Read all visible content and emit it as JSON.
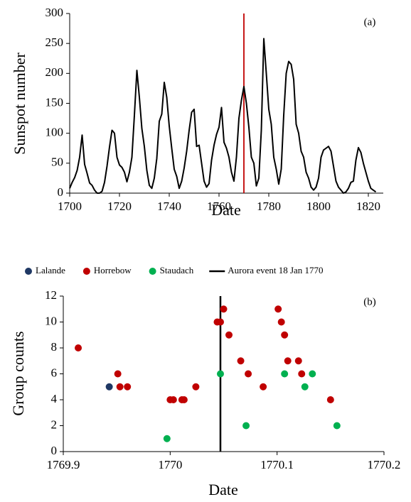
{
  "chart_data": [
    {
      "type": "line",
      "panel_label": "(a)",
      "x_label": "Date",
      "y_label": "Sunspot number",
      "x": [
        1700,
        1701,
        1702,
        1703,
        1704,
        1705,
        1706,
        1707,
        1708,
        1709,
        1710,
        1711,
        1712,
        1713,
        1714,
        1715,
        1716,
        1717,
        1718,
        1719,
        1720,
        1721,
        1722,
        1723,
        1724,
        1725,
        1726,
        1727,
        1728,
        1729,
        1730,
        1731,
        1732,
        1733,
        1734,
        1735,
        1736,
        1737,
        1738,
        1739,
        1740,
        1741,
        1742,
        1743,
        1744,
        1745,
        1746,
        1747,
        1748,
        1749,
        1750,
        1751,
        1752,
        1753,
        1754,
        1755,
        1756,
        1757,
        1758,
        1759,
        1760,
        1761,
        1762,
        1763,
        1764,
        1765,
        1766,
        1767,
        1768,
        1769,
        1770,
        1771,
        1772,
        1773,
        1774,
        1775,
        1776,
        1777,
        1778,
        1779,
        1780,
        1781,
        1782,
        1783,
        1784,
        1785,
        1786,
        1787,
        1788,
        1789,
        1790,
        1791,
        1792,
        1793,
        1794,
        1795,
        1796,
        1797,
        1798,
        1799,
        1800,
        1801,
        1802,
        1803,
        1804,
        1805,
        1806,
        1807,
        1808,
        1809,
        1810,
        1811,
        1812,
        1813,
        1814,
        1815,
        1816,
        1817,
        1818,
        1819,
        1820,
        1821,
        1822,
        1823
      ],
      "series": [
        {
          "color": "#000000",
          "values": [
            8,
            18,
            26,
            38,
            60,
            97,
            48,
            33,
            17,
            13,
            5,
            0,
            0,
            3,
            18,
            45,
            77,
            105,
            100,
            60,
            47,
            43,
            35,
            19,
            35,
            60,
            130,
            205,
            160,
            108,
            78,
            38,
            13,
            8,
            25,
            58,
            120,
            132,
            185,
            160,
            112,
            75,
            40,
            28,
            8,
            20,
            42,
            70,
            105,
            135,
            140,
            78,
            80,
            50,
            20,
            10,
            16,
            55,
            80,
            98,
            110,
            143,
            85,
            75,
            60,
            35,
            20,
            60,
            125,
            155,
            178,
            150,
            110,
            60,
            50,
            12,
            25,
            105,
            258,
            200,
            140,
            115,
            60,
            40,
            15,
            40,
            130,
            200,
            220,
            215,
            190,
            115,
            100,
            70,
            60,
            35,
            25,
            10,
            5,
            10,
            25,
            60,
            72,
            75,
            78,
            70,
            45,
            20,
            10,
            5,
            0,
            2,
            8,
            18,
            20,
            55,
            76,
            68,
            50,
            35,
            20,
            8,
            5,
            2
          ]
        }
      ],
      "vline": {
        "x": 1770,
        "color": "#c00000"
      },
      "xlim": [
        1700,
        1826
      ],
      "xticks": [
        1700,
        1720,
        1740,
        1760,
        1780,
        1800,
        1820
      ],
      "ylim": [
        0,
        300
      ],
      "yticks": [
        0,
        50,
        100,
        150,
        200,
        250,
        300
      ]
    },
    {
      "type": "scatter",
      "panel_label": "(b)",
      "x_label": "Date",
      "y_label": "Group counts",
      "series": [
        {
          "name": "Lalande",
          "color": "#1f3864",
          "x": [
            1769.943
          ],
          "values": [
            5
          ]
        },
        {
          "name": "Horrebow",
          "color": "#c00000",
          "x": [
            1769.914,
            1769.951,
            1769.953,
            1769.96,
            1770.0,
            1770.003,
            1770.011,
            1770.013,
            1770.024,
            1770.044,
            1770.047,
            1770.05,
            1770.055,
            1770.066,
            1770.073,
            1770.087,
            1770.101,
            1770.104,
            1770.107,
            1770.11,
            1770.12,
            1770.123,
            1770.15
          ],
          "values": [
            8,
            6,
            5,
            5,
            4,
            4,
            4,
            4,
            5,
            10,
            10,
            11,
            9,
            7,
            6,
            5,
            11,
            10,
            9,
            7,
            7,
            6,
            4
          ]
        },
        {
          "name": "Staudach",
          "color": "#00b050",
          "x": [
            1769.997,
            1770.047,
            1770.071,
            1770.107,
            1770.126,
            1770.133,
            1770.156
          ],
          "values": [
            1,
            6,
            2,
            6,
            5,
            6,
            2
          ]
        }
      ],
      "vline": {
        "name": "Aurora event 18 Jan 1770",
        "x": 1770.047,
        "color": "#000000"
      },
      "xlim": [
        1769.9,
        1770.2
      ],
      "xticks": [
        1769.9,
        1770,
        1770.1,
        1770.2
      ],
      "ylim": [
        0,
        12
      ],
      "yticks": [
        0,
        2,
        4,
        6,
        8,
        10,
        12
      ]
    }
  ]
}
